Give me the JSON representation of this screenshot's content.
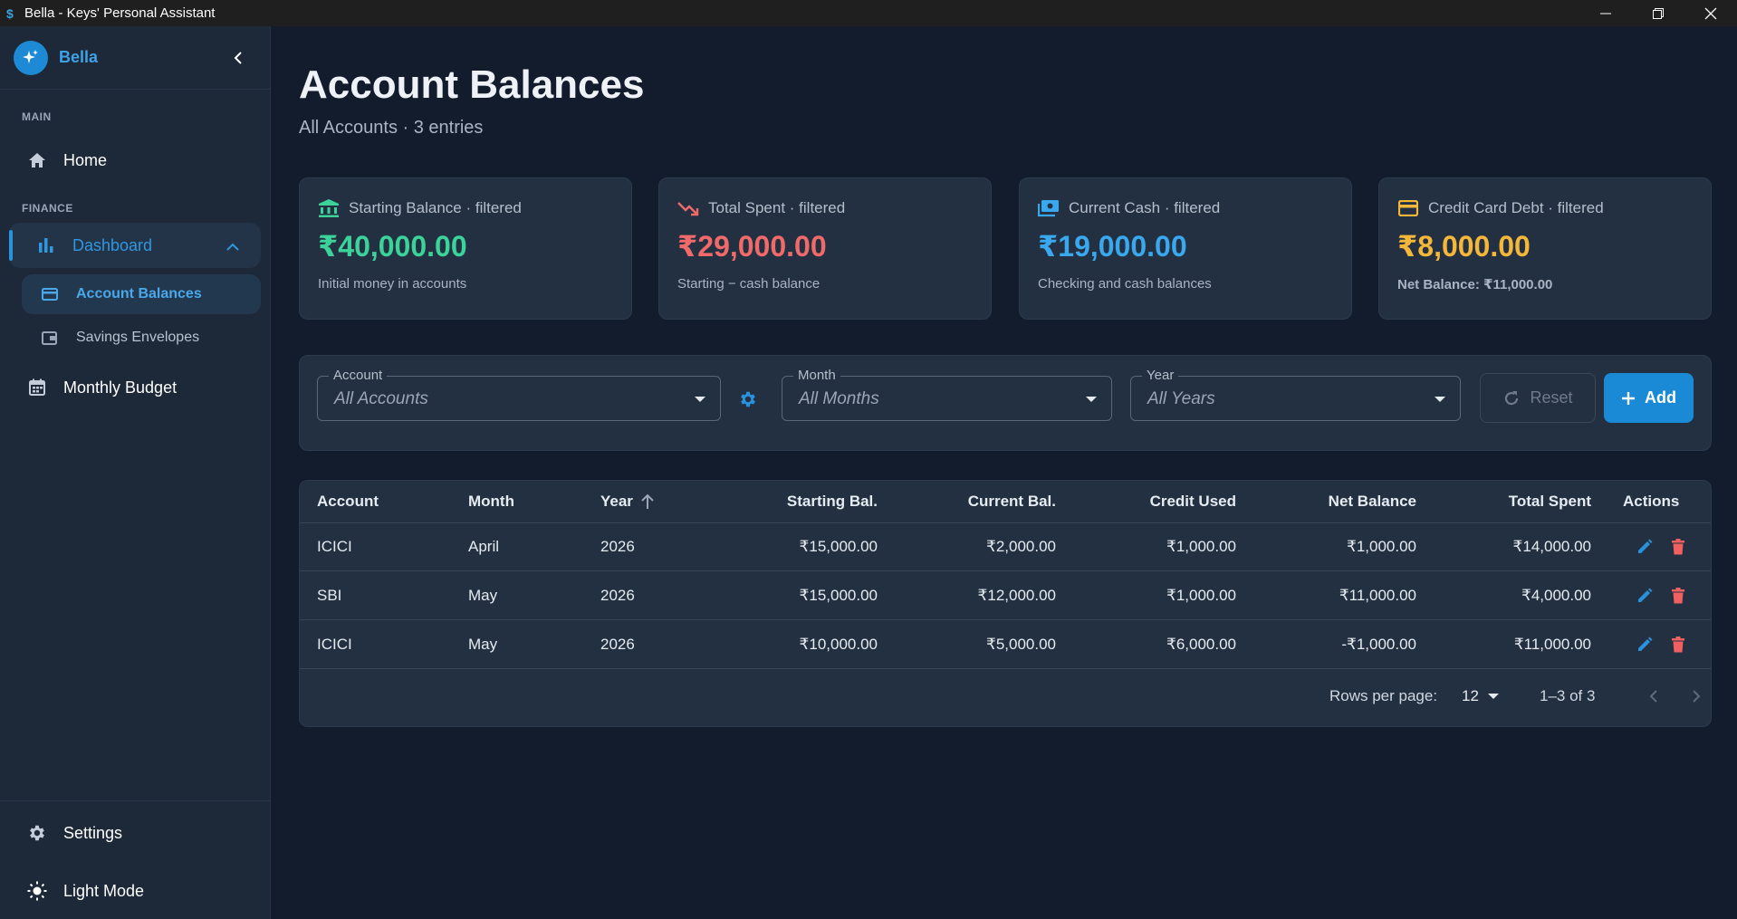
{
  "window": {
    "title": "Bella - Keys' Personal Assistant"
  },
  "sidebar": {
    "brand": "Bella",
    "sections": {
      "main": "MAIN",
      "finance": "FINANCE"
    },
    "items": {
      "home": "Home",
      "dashboard": "Dashboard",
      "account_balances": "Account Balances",
      "savings_envelopes": "Savings Envelopes",
      "monthly_budget": "Monthly Budget",
      "settings": "Settings",
      "light_mode": "Light Mode"
    }
  },
  "page": {
    "title": "Account Balances",
    "subtitle": "All Accounts · 3 entries"
  },
  "cards": [
    {
      "title": "Starting Balance · filtered",
      "value": "₹40,000.00",
      "desc": "Initial money in accounts",
      "color": "#3cd39a",
      "icon": "bank-icon"
    },
    {
      "title": "Total Spent · filtered",
      "value": "₹29,000.00",
      "desc": "Starting − cash balance",
      "color": "#f06a6a",
      "icon": "trending-down-icon"
    },
    {
      "title": "Current Cash · filtered",
      "value": "₹19,000.00",
      "desc": "Checking and cash balances",
      "color": "#3aa8ee",
      "icon": "cash-icon"
    },
    {
      "title": "Credit Card Debt · filtered",
      "value": "₹8,000.00",
      "desc": "Net Balance: ₹11,000.00",
      "color": "#f5b73a",
      "icon": "credit-card-icon"
    }
  ],
  "filters": {
    "account": {
      "label": "Account",
      "value": "All Accounts"
    },
    "month": {
      "label": "Month",
      "value": "All Months"
    },
    "year": {
      "label": "Year",
      "value": "All Years"
    },
    "reset": "Reset",
    "add": "Add"
  },
  "table": {
    "columns": [
      "Account",
      "Month",
      "Year",
      "Starting Bal.",
      "Current Bal.",
      "Credit Used",
      "Net Balance",
      "Total Spent",
      "Actions"
    ],
    "rows": [
      [
        "ICICI",
        "April",
        "2026",
        "₹15,000.00",
        "₹2,000.00",
        "₹1,000.00",
        "₹1,000.00",
        "₹14,000.00"
      ],
      [
        "SBI",
        "May",
        "2026",
        "₹15,000.00",
        "₹12,000.00",
        "₹1,000.00",
        "₹11,000.00",
        "₹4,000.00"
      ],
      [
        "ICICI",
        "May",
        "2026",
        "₹10,000.00",
        "₹5,000.00",
        "₹6,000.00",
        "-₹1,000.00",
        "₹11,000.00"
      ]
    ]
  },
  "pagination": {
    "rows_per_page_label": "Rows per page:",
    "rows_per_page": "12",
    "range": "1–3 of 3"
  },
  "colors": {
    "accent": "#1a8ad6",
    "background": "#131c2c",
    "surface": "#233041",
    "delete": "#f06060"
  }
}
